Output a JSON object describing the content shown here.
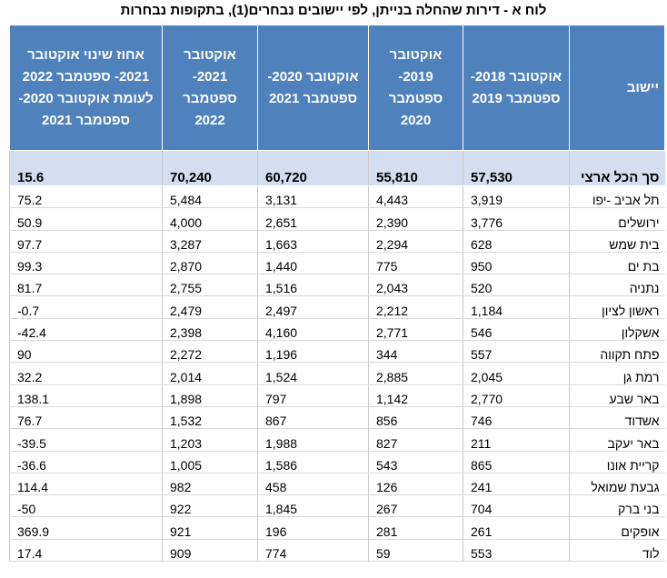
{
  "title": "לוח א - דירות שהחלה בנייתן, לפי יישובים נבחרים(1), בתקופות נבחרות",
  "columns": {
    "settlement": "יישוב",
    "p1": "אוקטובר 2018- ספטמבר 2019",
    "p2": "אוקטובר 2019- ספטמבר 2020",
    "p3": "אוקטובר 2020- ספטמבר 2021",
    "p4": "אוקטובר 2021- ספטמבר 2022",
    "change": "אחוז שינוי אוקטובר 2021- ספטמבר 2022 לעומת אוקטובר 2020- ספטמבר 2021"
  },
  "total": {
    "name": "סך הכל ארצי",
    "p1": "57,530",
    "p2": "55,810",
    "p3": "60,720",
    "p4": "70,240",
    "change": "15.6"
  },
  "rows": [
    {
      "name": "תל אביב -יפו",
      "p1": "3,919",
      "p2": "4,443",
      "p3": "3,131",
      "p4": "5,484",
      "change": "75.2"
    },
    {
      "name": "ירושלים",
      "p1": "3,776",
      "p2": "2,390",
      "p3": "2,651",
      "p4": "4,000",
      "change": "50.9"
    },
    {
      "name": "בית שמש",
      "p1": "628",
      "p2": "2,294",
      "p3": "1,663",
      "p4": "3,287",
      "change": "97.7"
    },
    {
      "name": "בת ים",
      "p1": "950",
      "p2": "775",
      "p3": "1,440",
      "p4": "2,870",
      "change": "99.3"
    },
    {
      "name": "נתניה",
      "p1": "520",
      "p2": "2,043",
      "p3": "1,516",
      "p4": "2,755",
      "change": "81.7"
    },
    {
      "name": "ראשון לציון",
      "p1": "1,184",
      "p2": "2,212",
      "p3": "2,497",
      "p4": "2,479",
      "change": "-0.7"
    },
    {
      "name": "אשקלון",
      "p1": "546",
      "p2": "2,771",
      "p3": "4,160",
      "p4": "2,398",
      "change": "-42.4"
    },
    {
      "name": "פתח תקווה",
      "p1": "557",
      "p2": "344",
      "p3": "1,196",
      "p4": "2,272",
      "change": "90"
    },
    {
      "name": "רמת גן",
      "p1": "2,045",
      "p2": "2,885",
      "p3": "1,524",
      "p4": "2,014",
      "change": "32.2"
    },
    {
      "name": "באר שבע",
      "p1": "2,770",
      "p2": "1,142",
      "p3": "797",
      "p4": "1,898",
      "change": "138.1"
    },
    {
      "name": "אשדוד",
      "p1": "746",
      "p2": "856",
      "p3": "867",
      "p4": "1,532",
      "change": "76.7"
    },
    {
      "name": "באר יעקב",
      "p1": "211",
      "p2": "827",
      "p3": "1,988",
      "p4": "1,203",
      "change": "-39.5"
    },
    {
      "name": "קריית אונו",
      "p1": "865",
      "p2": "543",
      "p3": "1,586",
      "p4": "1,005",
      "change": "-36.6"
    },
    {
      "name": "גבעת שמואל",
      "p1": "241",
      "p2": "126",
      "p3": "458",
      "p4": "982",
      "change": "114.4"
    },
    {
      "name": "בני ברק",
      "p1": "704",
      "p2": "267",
      "p3": "1,845",
      "p4": "922",
      "change": "-50"
    },
    {
      "name": "אופקים",
      "p1": "261",
      "p2": "281",
      "p3": "196",
      "p4": "921",
      "change": "369.9"
    },
    {
      "name": "לוד",
      "p1": "553",
      "p2": "59",
      "p3": "774",
      "p4": "909",
      "change": "17.4"
    }
  ],
  "colors": {
    "header_bg": "#4f81bd",
    "header_text": "#ffffff",
    "total_bg": "#d3dff0"
  }
}
